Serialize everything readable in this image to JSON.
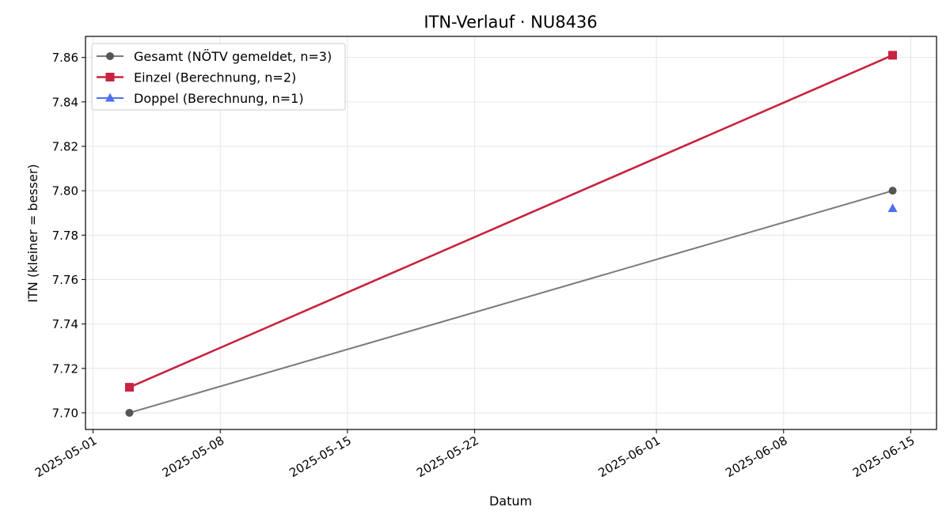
{
  "chart_data": {
    "type": "line",
    "title": "ITN-Verlauf · NU8436",
    "xlabel": "Datum",
    "ylabel": "ITN  (kleiner = besser)",
    "x_axis_type": "date",
    "xlim": [
      "2025-04-30T14:00",
      "2025-06-16T10:00"
    ],
    "ylim": [
      7.6925,
      7.8695
    ],
    "x_ticks": [
      "2025-05-01",
      "2025-05-08",
      "2025-05-15",
      "2025-05-22",
      "2025-06-01",
      "2025-06-08",
      "2025-06-15"
    ],
    "y_ticks": [
      7.7,
      7.72,
      7.74,
      7.76,
      7.78,
      7.8,
      7.82,
      7.84,
      7.86
    ],
    "y_tick_labels": [
      "7.70",
      "7.72",
      "7.74",
      "7.76",
      "7.78",
      "7.80",
      "7.82",
      "7.84",
      "7.86"
    ],
    "grid": true,
    "legend_position": "top-left",
    "series": [
      {
        "name": "Gesamt (NÖTV gemeldet, n=3)",
        "color": "#7a7a7a",
        "marker_color": "#555555",
        "marker": "circle",
        "points": [
          {
            "x": "2025-05-03",
            "y": 7.7
          },
          {
            "x": "2025-06-14",
            "y": 7.8
          }
        ]
      },
      {
        "name": "Einzel (Berechnung, n=2)",
        "color": "#c8233f",
        "marker_color": "#c8233f",
        "marker": "square",
        "points": [
          {
            "x": "2025-05-03",
            "y": 7.7115
          },
          {
            "x": "2025-06-14",
            "y": 7.861
          }
        ]
      },
      {
        "name": "Doppel (Berechnung, n=1)",
        "color": "#4f6ff0",
        "marker_color": "#4f6ff0",
        "marker": "triangle",
        "points": [
          {
            "x": "2025-06-14",
            "y": 7.792
          }
        ]
      }
    ]
  }
}
